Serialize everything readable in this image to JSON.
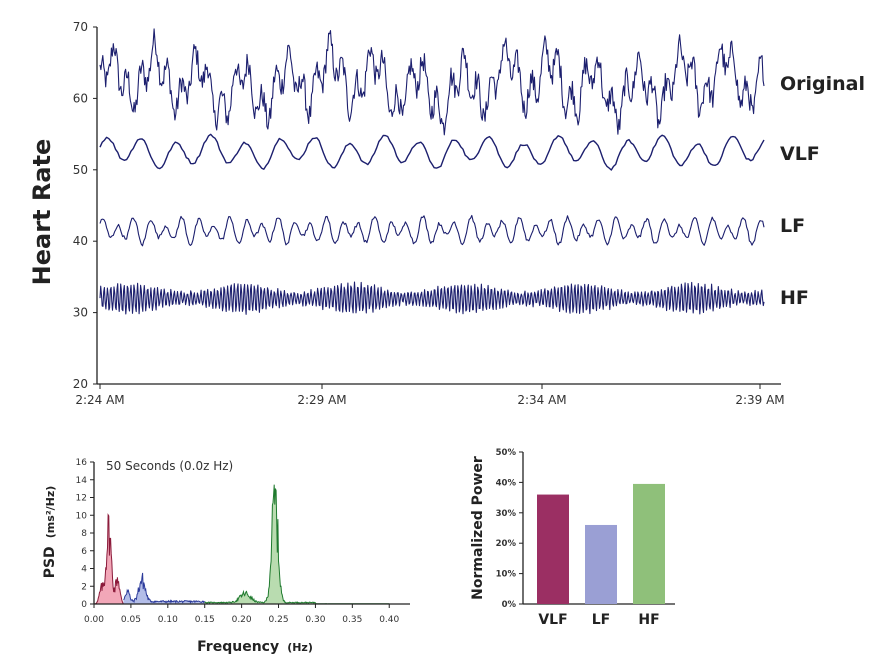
{
  "chart_data": [
    {
      "type": "line",
      "ylabel": "Heart Rate",
      "ylim": [
        20,
        70
      ],
      "yticks": [
        20,
        30,
        40,
        50,
        60,
        70
      ],
      "xticks": [
        "2:24 AM",
        "2:29 AM",
        "2:34 AM",
        "2:39 AM"
      ],
      "series": [
        {
          "name": "Original",
          "baseline": 62,
          "amplitude": 6.5,
          "color": "#1c1f6e"
        },
        {
          "name": "VLF",
          "baseline": 52.5,
          "amplitude": 2.5,
          "color": "#1c1f6e"
        },
        {
          "name": "LF",
          "baseline": 41.5,
          "amplitude": 2.2,
          "color": "#1c1f6e"
        },
        {
          "name": "HF",
          "baseline": 32,
          "amplitude": 2.6,
          "color": "#1c1f6e"
        }
      ]
    },
    {
      "type": "area",
      "annotation": "50 Seconds (0.0z Hz)",
      "xlabel_main": "Frequency",
      "xlabel_unit": "(Hz)",
      "ylabel_main": "PSD",
      "ylabel_unit": "(ms²/Hz)",
      "xlim": [
        0,
        0.42
      ],
      "ylim": [
        0,
        16
      ],
      "xticks": [
        "0.00",
        "0.05",
        "0.10",
        "0.15",
        "0.20",
        "0.25",
        "0.30",
        "0.35",
        "0.40"
      ],
      "yticks": [
        "0",
        "2",
        "4",
        "6",
        "8",
        "10",
        "12",
        "14",
        "16"
      ],
      "bands": [
        {
          "name": "VLF",
          "range": [
            0.0,
            0.04
          ],
          "color": "#8b1a3a",
          "fill": "#f2a7b8",
          "peak_freq": 0.02,
          "peak": 10.0
        },
        {
          "name": "LF",
          "range": [
            0.04,
            0.15
          ],
          "color": "#2b3a9a",
          "fill": "#b3bde8",
          "peak_freq": 0.065,
          "peak": 3.0
        },
        {
          "name": "HF",
          "range": [
            0.15,
            0.4
          ],
          "color": "#1f7a2e",
          "fill": "#b9dcb0",
          "peak_freq": 0.245,
          "peak": 13.8
        }
      ]
    },
    {
      "type": "bar",
      "ylabel": "Normalized Power",
      "ylim": [
        0,
        50
      ],
      "yticks": [
        "0%",
        "10%",
        "20%",
        "30%",
        "40%",
        "50%"
      ],
      "categories": [
        "VLF",
        "LF",
        "HF"
      ],
      "values": [
        36,
        26,
        39.5
      ],
      "colors": [
        "#9b2f63",
        "#9a9fd4",
        "#8fc07a"
      ]
    }
  ]
}
